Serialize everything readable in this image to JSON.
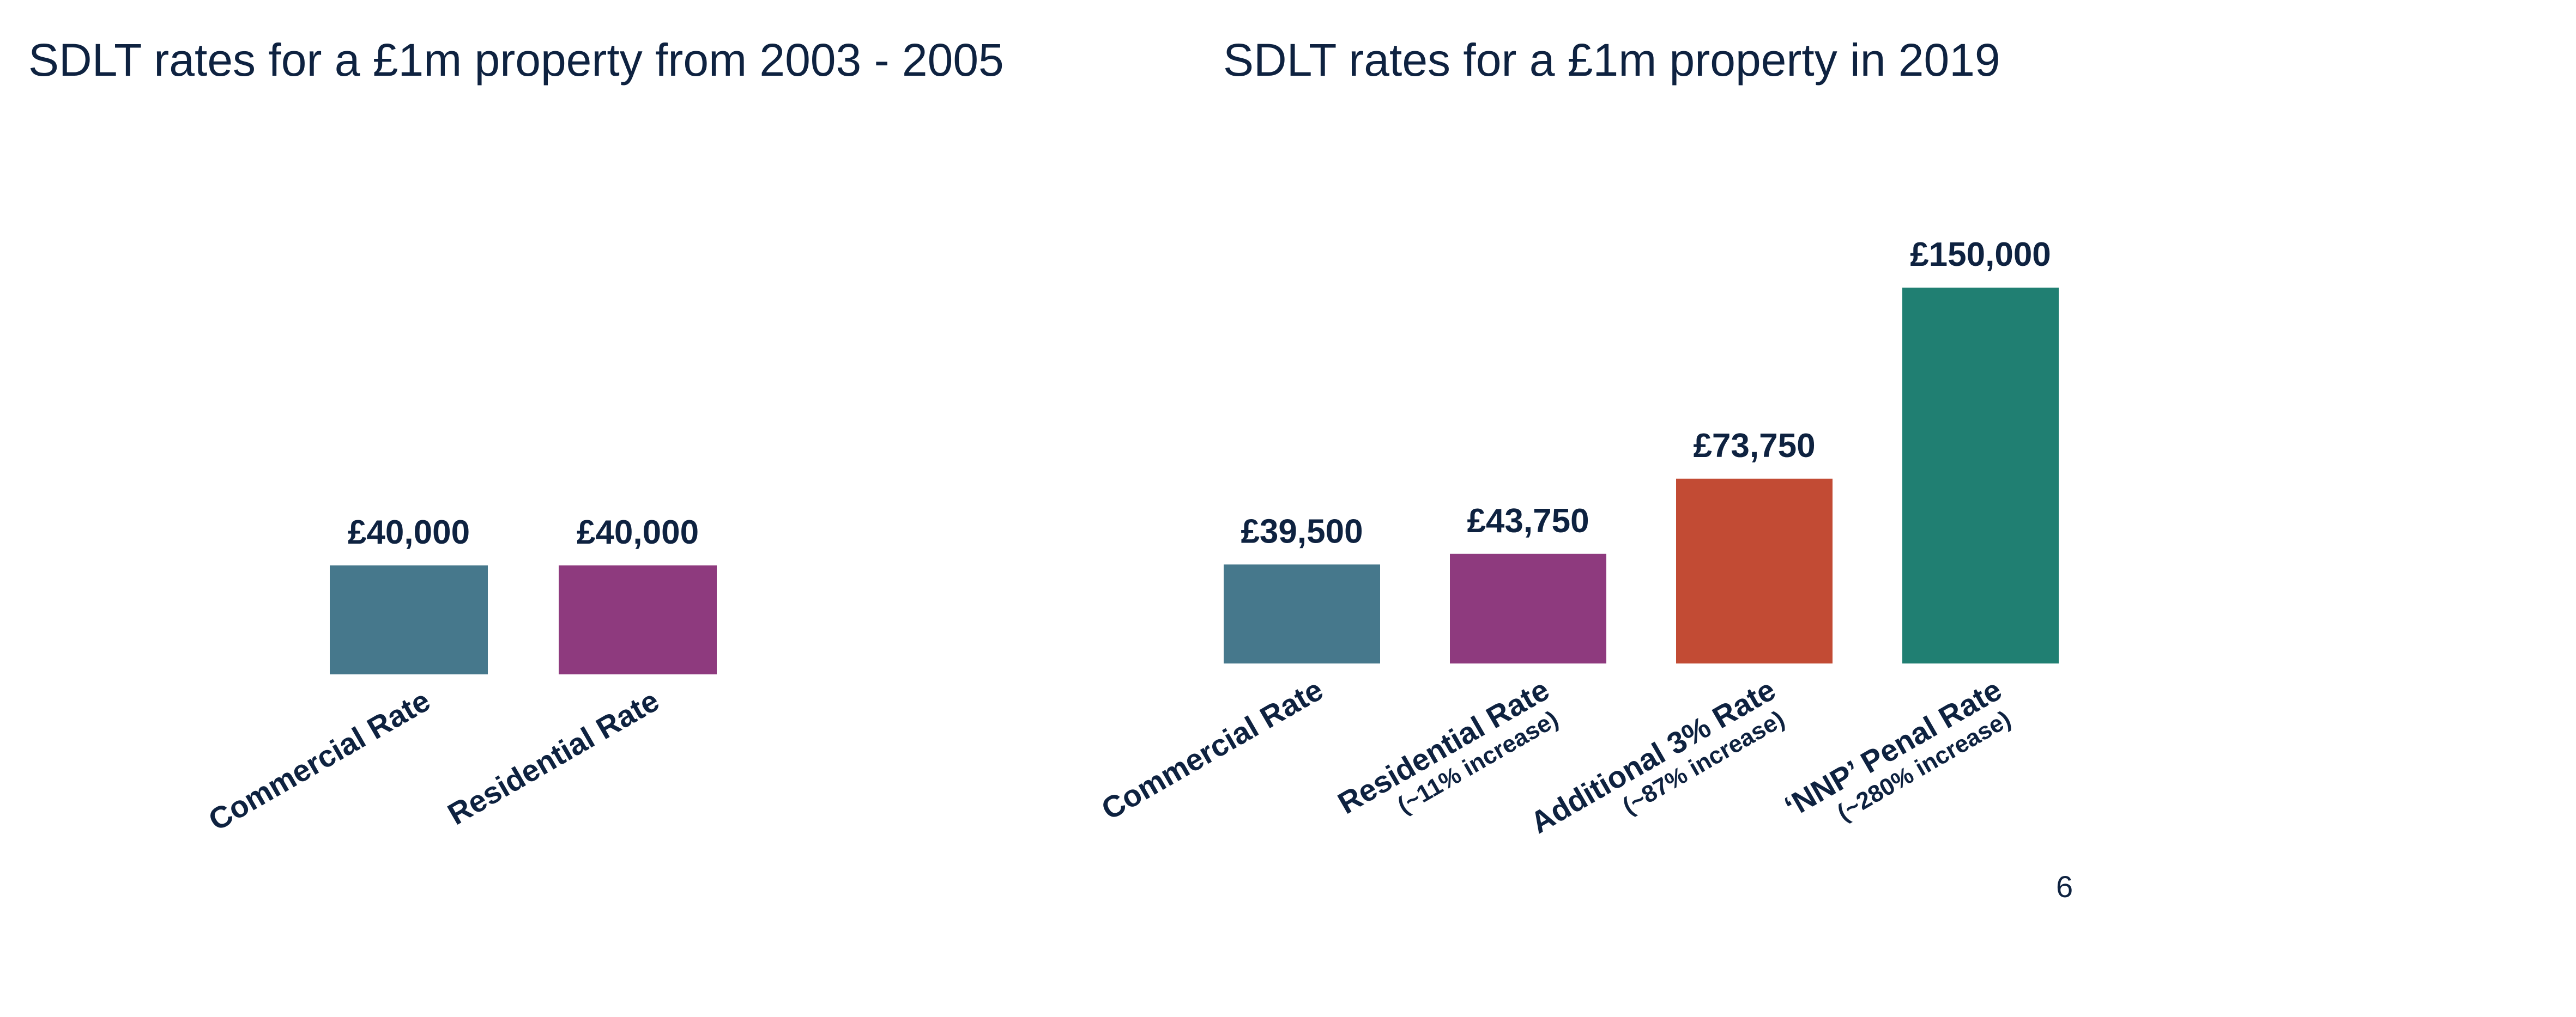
{
  "colors": {
    "text": "#0e2240",
    "commercial": "#46788c",
    "residential": "#8e3a7e",
    "additional": "#c24b34",
    "penal": "#207f72"
  },
  "page_number": "6",
  "chart_data": [
    {
      "type": "bar",
      "title": "SDLT rates for a £1m property from 2003 - 2005",
      "categories": [
        "Commercial Rate",
        "Residential Rate"
      ],
      "category_notes": [
        "",
        ""
      ],
      "values": [
        40000,
        40000
      ],
      "data_labels": [
        "£40,000",
        "£40,000"
      ],
      "bar_colors": [
        "#46788c",
        "#8e3a7e"
      ],
      "xlabel": "",
      "ylabel": "",
      "grid": false,
      "legend": "none"
    },
    {
      "type": "bar",
      "title": "SDLT rates for a £1m property in 2019",
      "categories": [
        "Commercial Rate",
        "Residential Rate",
        "Additional 3% Rate",
        "‘NNP’ Penal Rate"
      ],
      "category_notes": [
        "",
        "(~11% increase)",
        "(~87% increase)",
        "(~280% increase)"
      ],
      "values": [
        39500,
        43750,
        73750,
        150000
      ],
      "data_labels": [
        "£39,500",
        "£43,750",
        "£73,750",
        "£150,000"
      ],
      "bar_colors": [
        "#46788c",
        "#8e3a7e",
        "#c24b34",
        "#207f72"
      ],
      "xlabel": "",
      "ylabel": "",
      "grid": false,
      "legend": "none"
    }
  ]
}
